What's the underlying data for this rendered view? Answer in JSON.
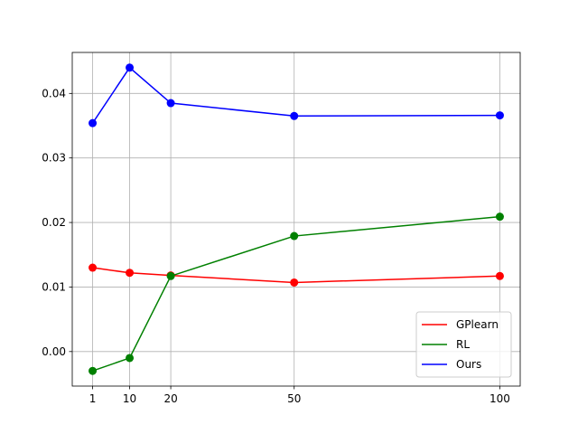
{
  "chart_data": {
    "type": "line",
    "x": [
      1,
      10,
      20,
      50,
      100
    ],
    "series": [
      {
        "name": "GPlearn",
        "color": "#ff0000",
        "values": [
          0.013,
          0.0122,
          0.0118,
          0.0107,
          0.0117
        ]
      },
      {
        "name": "RL",
        "color": "#008000",
        "values": [
          -0.003,
          -0.001,
          0.0117,
          0.0179,
          0.0209
        ]
      },
      {
        "name": "Ours",
        "color": "#0000ff",
        "values": [
          0.0354,
          0.044,
          0.0385,
          0.0365,
          0.0366
        ]
      }
    ],
    "xlim": [
      -3.95,
      104.95
    ],
    "xticks": [
      1,
      10,
      20,
      50,
      100
    ],
    "ylim": [
      -0.00535,
      0.04635
    ],
    "yticks": [
      {
        "value": 0,
        "label": "0.00"
      },
      0.01,
      0.02,
      0.03,
      0.04
    ],
    "grid": true,
    "legend": "lower right",
    "markers": true
  }
}
